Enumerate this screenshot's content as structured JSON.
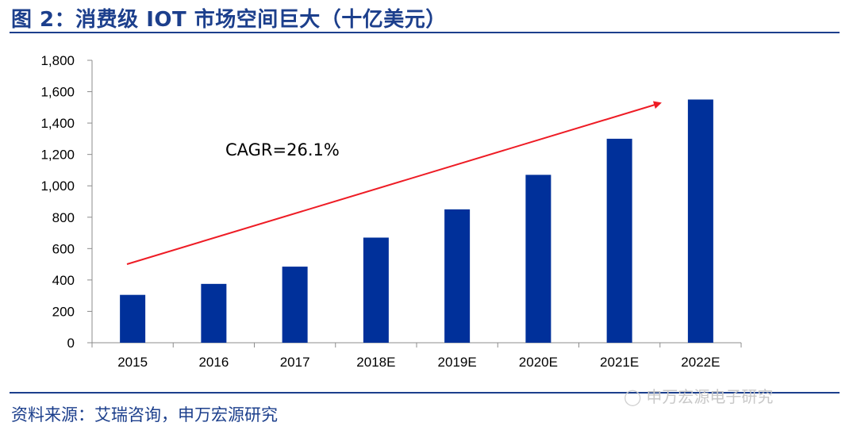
{
  "title": "图 2：消费级 IOT 市场空间巨大（十亿美元）",
  "source": "资料来源：艾瑞咨询，申万宏源研究",
  "watermark": {
    "text": "申万宏源电子研究",
    "icon": "wechat-icon"
  },
  "colors": {
    "bar": "#00309a",
    "title": "#1c3f8c",
    "arrow": "#ee1c25",
    "axis": "#8c8c8c"
  },
  "chart_data": {
    "type": "bar",
    "categories": [
      "2015",
      "2016",
      "2017",
      "2018E",
      "2019E",
      "2020E",
      "2021E",
      "2022E"
    ],
    "values": [
      305,
      375,
      485,
      670,
      850,
      1070,
      1300,
      1550
    ],
    "ylim": [
      0,
      1800
    ],
    "yticks": [
      0,
      200,
      400,
      600,
      800,
      1000,
      1200,
      1400,
      1600,
      1800
    ],
    "ytick_labels": [
      "0",
      "200",
      "400",
      "600",
      "800",
      "1,000",
      "1,200",
      "1,400",
      "1,600",
      "1,800"
    ],
    "grid": false,
    "legend": "none",
    "annotation": "CAGR=26.1%",
    "xlabel": "",
    "ylabel": ""
  }
}
